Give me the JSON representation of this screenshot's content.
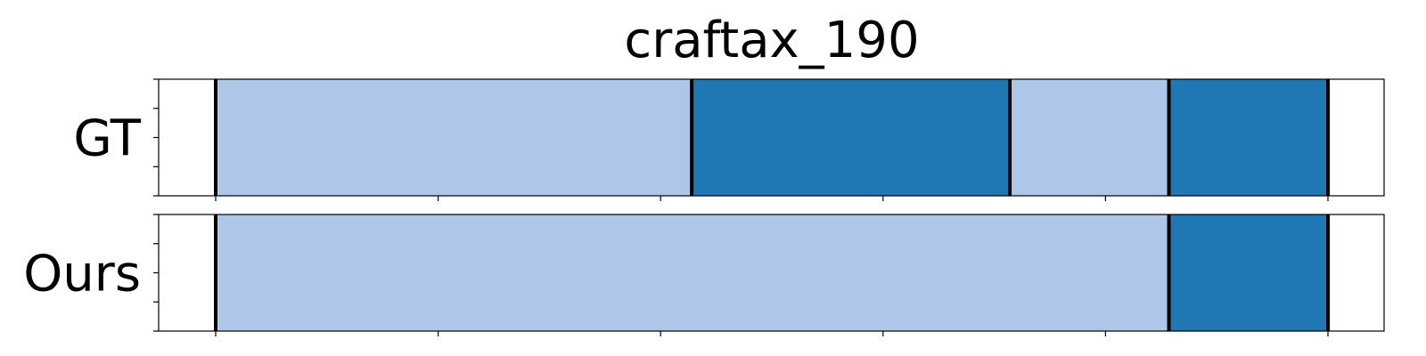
{
  "chart_data": {
    "type": "segment_timeline",
    "title": "craftax_190",
    "x_range": [
      0,
      1000
    ],
    "x_ticks": [
      0,
      200,
      400,
      600,
      800,
      1000
    ],
    "tick_labels_visible": false,
    "colors": {
      "light": "#aec7e8",
      "dark": "#1f77b4",
      "boundary": "#000000",
      "frame": "#000000"
    },
    "rows": [
      {
        "label": "GT",
        "segments": [
          {
            "start": 0,
            "end": 428,
            "color": "light"
          },
          {
            "start": 428,
            "end": 714,
            "color": "dark"
          },
          {
            "start": 714,
            "end": 857,
            "color": "light"
          },
          {
            "start": 857,
            "end": 1000,
            "color": "dark"
          }
        ],
        "boundaries": [
          0,
          428,
          714,
          857,
          1000
        ]
      },
      {
        "label": "Ours",
        "segments": [
          {
            "start": 0,
            "end": 857,
            "color": "light"
          },
          {
            "start": 857,
            "end": 1000,
            "color": "dark"
          }
        ],
        "boundaries": [
          0,
          857,
          1000
        ]
      }
    ]
  }
}
